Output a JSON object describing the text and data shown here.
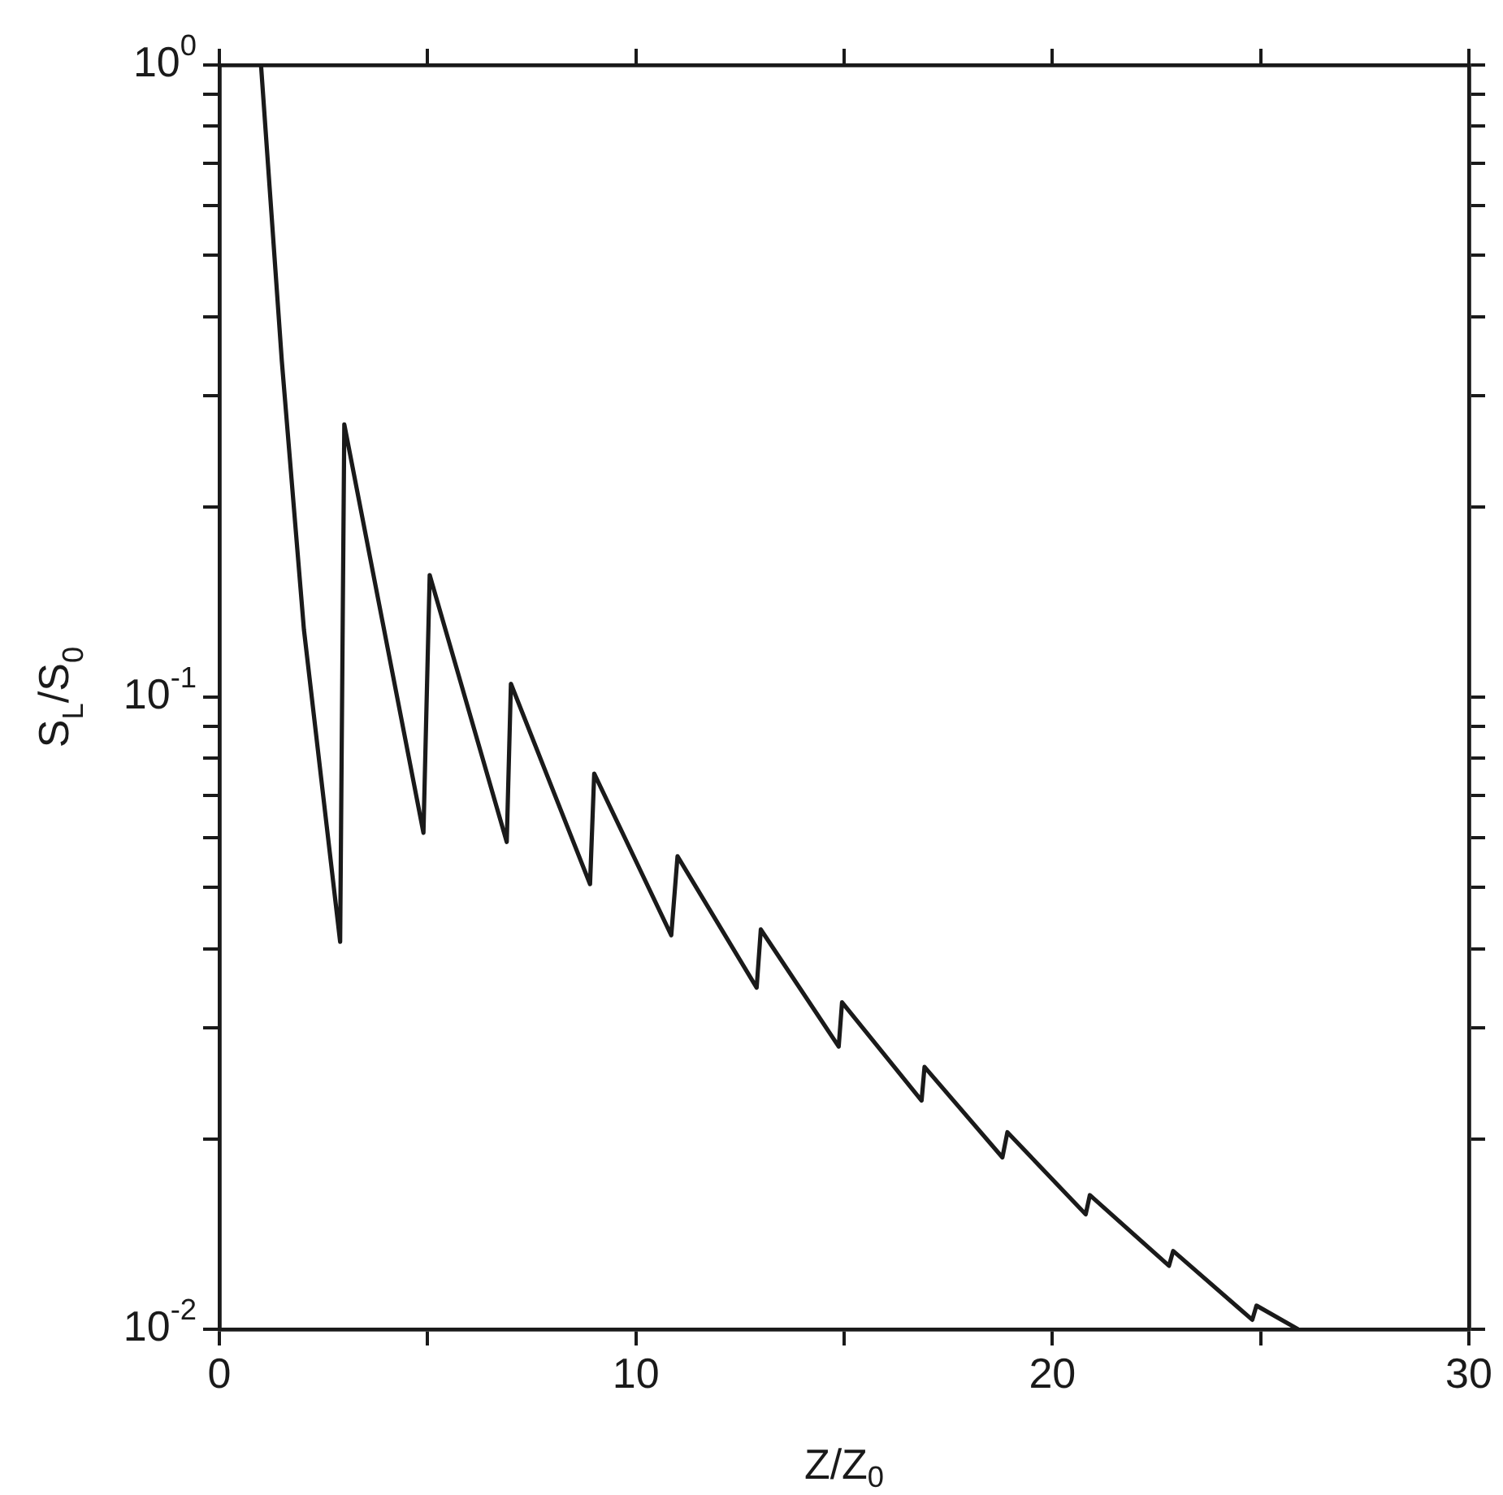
{
  "chart_data": {
    "type": "line",
    "xlabel": "Z/Z$_{0}$",
    "ylabel": "S$_{L}$/S$_{0}$",
    "log": "y",
    "marker": "none",
    "x": [
      1,
      1.5,
      2.03,
      2.9,
      3,
      4.9,
      5.05,
      6.9,
      7,
      8.9,
      9,
      10.85,
      11,
      12.9,
      13,
      14.87,
      14.95,
      16.86,
      16.93,
      18.8,
      18.92,
      20.8,
      20.9,
      22.8,
      22.9,
      24.8,
      24.9,
      25.9
    ],
    "series": [
      {
        "color": "#1a1a1a",
        "values": [
          1,
          0.34,
          0.128,
          0.041,
          0.27,
          0.061,
          0.156,
          0.059,
          0.105,
          0.0506,
          0.0757,
          0.042,
          0.056,
          0.0347,
          0.0429,
          0.028,
          0.0329,
          0.023,
          0.026,
          0.0187,
          0.0205,
          0.0152,
          0.0163,
          0.0126,
          0.0133,
          0.01035,
          0.0109,
          0.01
        ]
      }
    ],
    "xlim": [
      0,
      30
    ],
    "ylim": [
      0.01,
      1
    ],
    "xticks": [
      0,
      {
        "value": 5,
        "label": null
      },
      10,
      {
        "value": 15,
        "label": null
      },
      20,
      {
        "value": 25,
        "label": null
      },
      30
    ],
    "yticks": [
      {
        "value": 0.01,
        "label": "10$^{-2}$"
      },
      {
        "value": 0.02,
        "label": null
      },
      {
        "value": 0.03,
        "label": null
      },
      {
        "value": 0.04,
        "label": null
      },
      {
        "value": 0.05,
        "label": null
      },
      {
        "value": 0.06,
        "label": null
      },
      {
        "value": 0.07,
        "label": null
      },
      {
        "value": 0.08,
        "label": null
      },
      {
        "value": 0.09,
        "label": null
      },
      {
        "value": 0.1,
        "label": "10$^{-1}$"
      },
      {
        "value": 0.2,
        "label": null
      },
      {
        "value": 0.3,
        "label": null
      },
      {
        "value": 0.4,
        "label": null
      },
      {
        "value": 0.5,
        "label": null
      },
      {
        "value": 0.6,
        "label": null
      },
      {
        "value": 0.7,
        "label": null
      },
      {
        "value": 0.8,
        "label": null
      },
      {
        "value": 0.9,
        "label": null
      },
      {
        "value": 1,
        "label": "10$^{0}$"
      }
    ]
  }
}
